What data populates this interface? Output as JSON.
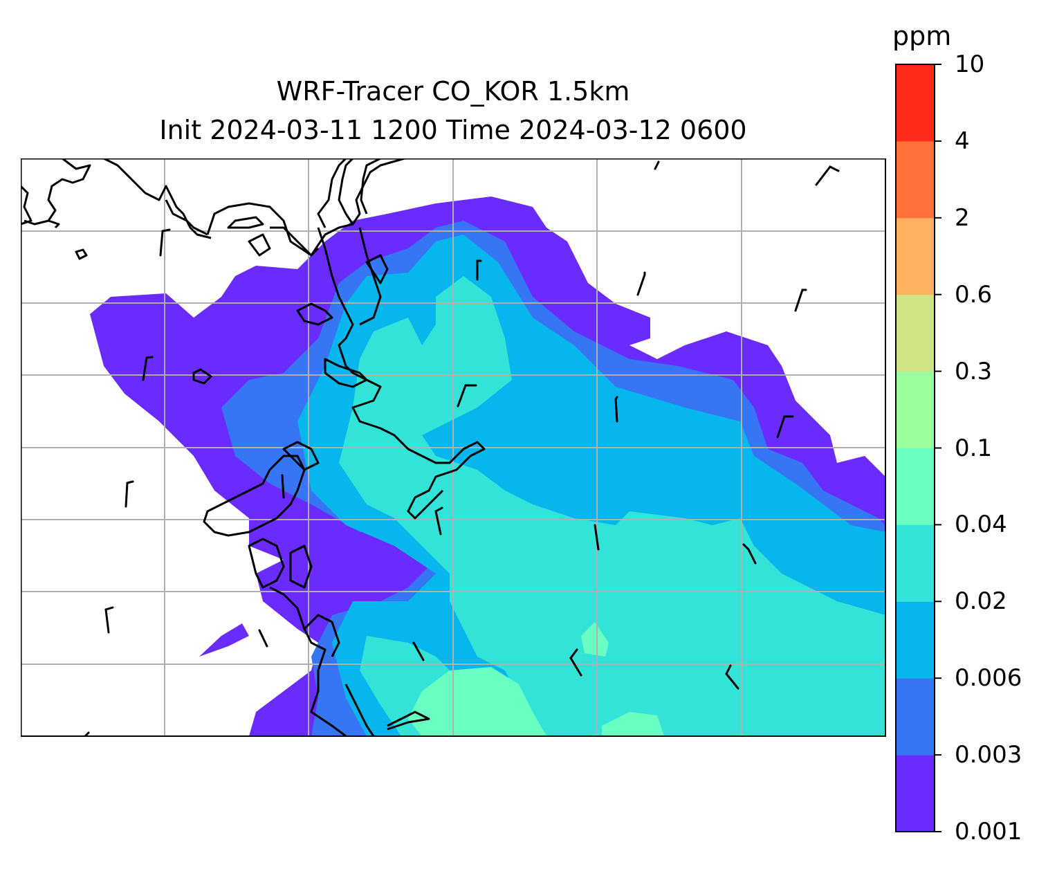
{
  "title": {
    "line1": "WRF-Tracer CO_KOR 1.5km",
    "line2": "Init 2024-03-11 1200 Time 2024-03-12 0600"
  },
  "colorbar": {
    "unit": "ppm",
    "levels": [
      "0.001",
      "0.003",
      "0.006",
      "0.02",
      "0.04",
      "0.1",
      "0.3",
      "0.6",
      "2",
      "4",
      "10"
    ],
    "colors": [
      "#6a2bff",
      "#3676f4",
      "#06b6ec",
      "#34e3d8",
      "#6affc2",
      "#9bffa0",
      "#d1e387",
      "#ffb260",
      "#ff7138",
      "#ff2a1a"
    ]
  },
  "map": {
    "gridlines": true,
    "coastline_color": "#000000",
    "gridline_color": "#b0b0b0",
    "wind_barbs": true
  }
}
